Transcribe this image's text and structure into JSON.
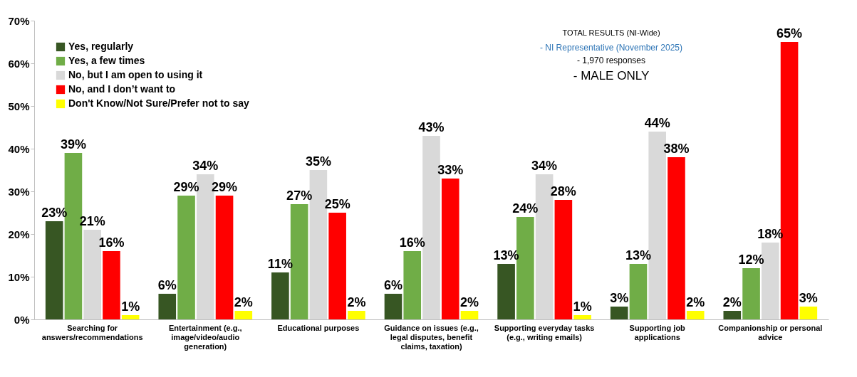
{
  "chart_data": {
    "type": "bar",
    "categories": [
      "Searching for answers/recommendations",
      "Entertainment (e.g., image/video/audio generation)",
      "Educational purposes",
      "Guidance on issues (e.g., legal disputes, benefit claims, taxation)",
      "Supporting everyday tasks (e.g., writing emails)",
      "Supporting job applications",
      "Companionship or personal advice"
    ],
    "series": [
      {
        "name": "Yes, regularly",
        "color": "#375623",
        "values": [
          23,
          6,
          11,
          6,
          13,
          3,
          2
        ],
        "value_labels": [
          "23%",
          "6%",
          "11%",
          "6%",
          "13%",
          "3%",
          "2%"
        ]
      },
      {
        "name": "Yes, a few times",
        "color": "#70ad47",
        "values": [
          39,
          29,
          27,
          16,
          24,
          13,
          12
        ],
        "value_labels": [
          "39%",
          "29%",
          "27%",
          "16%",
          "24%",
          "13%",
          "12%"
        ]
      },
      {
        "name": "No, but I am open to using it",
        "color": "#d9d9d9",
        "values": [
          21,
          34,
          35,
          43,
          34,
          44,
          18
        ],
        "value_labels": [
          "21%",
          "34%",
          "35%",
          "43%",
          "34%",
          "44%",
          "18%"
        ]
      },
      {
        "name": "No, and I don’t want to",
        "color": "#ff0000",
        "values": [
          16,
          29,
          25,
          33,
          28,
          38,
          65
        ],
        "value_labels": [
          "16%",
          "29%",
          "25%",
          "33%",
          "28%",
          "38%",
          "65%"
        ]
      },
      {
        "name": "Don't Know/Not Sure/Prefer not to say",
        "color": "#ffff00",
        "values": [
          1,
          2,
          2,
          2,
          1,
          2,
          3
        ],
        "value_labels": [
          "1%",
          "2%",
          "2%",
          "2%",
          "1%",
          "2%",
          "3%"
        ]
      }
    ],
    "ylim": [
      0,
      70
    ],
    "yticks": [
      {
        "value": 0,
        "label": "0%"
      },
      {
        "value": 10,
        "label": "10%"
      },
      {
        "value": 20,
        "label": "20%"
      },
      {
        "value": 30,
        "label": "30%"
      },
      {
        "value": 40,
        "label": "40%"
      },
      {
        "value": 50,
        "label": "50%"
      },
      {
        "value": 60,
        "label": "60%"
      },
      {
        "value": 70,
        "label": "70%"
      }
    ],
    "grid": false,
    "legend": "top left",
    "annotations": [
      "TOTAL RESULTS (NI-Wide)",
      "- NI Representative (November 2025)",
      "- 1,970 responses",
      "- MALE ONLY"
    ]
  }
}
